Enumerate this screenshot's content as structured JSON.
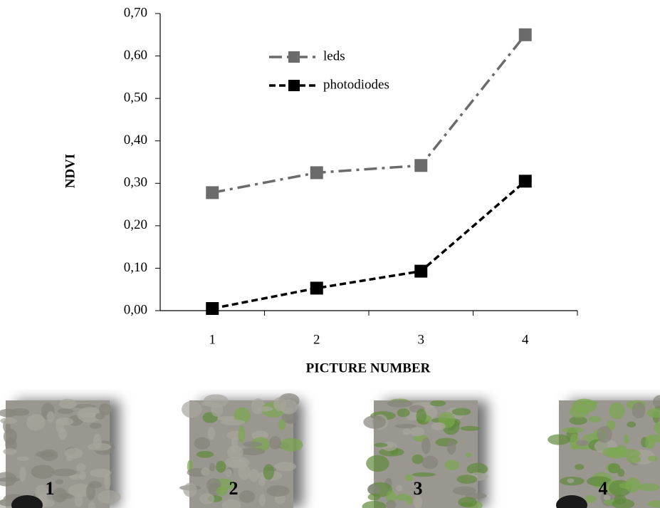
{
  "chart_data": {
    "type": "line",
    "x_label": "PICTURE NUMBER",
    "y_label": "NDVI",
    "categories": [
      "1",
      "2",
      "3",
      "4"
    ],
    "series": [
      {
        "name": "leds",
        "color": "#6b6b6b",
        "dash": "dashdot",
        "values": [
          0.278,
          0.325,
          0.342,
          0.65
        ]
      },
      {
        "name": "photodiodes",
        "color": "#000000",
        "dash": "dashed",
        "values": [
          0.005,
          0.053,
          0.093,
          0.305
        ]
      }
    ],
    "ylim": [
      0,
      0.7
    ],
    "yticks": [
      {
        "value": 0,
        "label": "0,00"
      },
      {
        "value": 0.1,
        "label": "0,10"
      },
      {
        "value": 0.2,
        "label": "0,20"
      },
      {
        "value": 0.3,
        "label": "0,30"
      },
      {
        "value": 0.4,
        "label": "0,40"
      },
      {
        "value": 0.5,
        "label": "0,50"
      },
      {
        "value": 0.6,
        "label": "0,60"
      },
      {
        "value": 0.7,
        "label": "0,70"
      }
    ],
    "grid": false,
    "legend": "top"
  },
  "pictures": [
    {
      "label": "1"
    },
    {
      "label": "2"
    },
    {
      "label": "3"
    },
    {
      "label": "4"
    }
  ]
}
